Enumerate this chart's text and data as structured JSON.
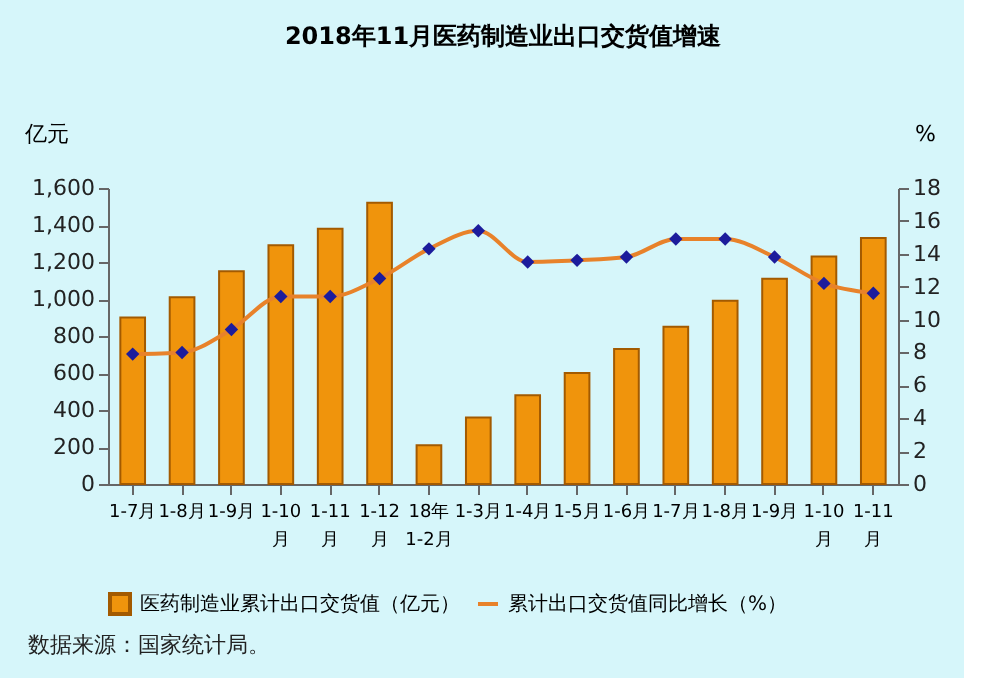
{
  "chart_data": {
    "type": "bar",
    "title": "2018年11月医药制造业出口交货值增速",
    "ylabel": "亿元",
    "y2label": "%",
    "categories": [
      "1-7月",
      "1-8月",
      "1-9月",
      "1-10月",
      "1-11月",
      "1-12月",
      "18年1-2月",
      "1-3月",
      "1-4月",
      "1-5月",
      "1-6月",
      "1-7月",
      "1-8月",
      "1-9月",
      "1-10月",
      "1-11月"
    ],
    "series": [
      {
        "name": "医药制造业累计出口交货值（亿元）",
        "color": "#f0940c",
        "values": [
          900,
          1010,
          1150,
          1290,
          1380,
          1520,
          210,
          360,
          480,
          600,
          730,
          850,
          990,
          1110,
          1230,
          1330
        ]
      },
      {
        "name": "累计出口交货值同比增长（%）",
        "type": "line",
        "axis": "y2",
        "color": "#e8822a",
        "marker": "diamond",
        "values": [
          7.9,
          8.0,
          9.4,
          11.4,
          11.4,
          12.5,
          14.3,
          15.4,
          13.5,
          13.6,
          13.8,
          14.9,
          14.9,
          13.8,
          12.2,
          11.6
        ]
      }
    ],
    "ylim": [
      0,
      1600
    ],
    "yticks": [
      {
        "value": 0,
        "label": "0"
      },
      {
        "value": 200,
        "label": "200"
      },
      {
        "value": 400,
        "label": "400"
      },
      {
        "value": 600,
        "label": "600"
      },
      {
        "value": 800,
        "label": "800"
      },
      {
        "value": 1000,
        "label": "1,000"
      },
      {
        "value": 1200,
        "label": "1,200"
      },
      {
        "value": 1400,
        "label": "1,400"
      },
      {
        "value": 1600,
        "label": "1,600"
      }
    ],
    "y2lim": [
      0,
      18
    ],
    "y2ticks": [
      0,
      2,
      4,
      6,
      8,
      10,
      12,
      14,
      16,
      18
    ],
    "grid": false,
    "legend": "bottom",
    "annotations": [
      "数据来源：国家统计局。"
    ]
  }
}
